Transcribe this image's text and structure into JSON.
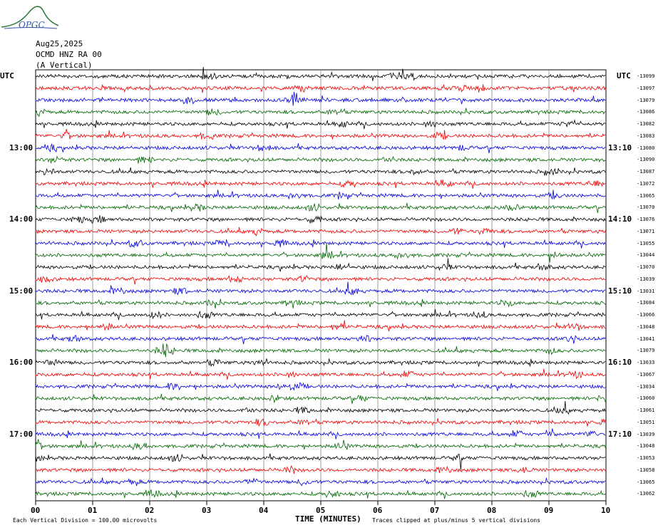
{
  "header": {
    "logo_text": "OPGC",
    "date": "Aug25,2025",
    "station": "OCMD HNZ RA 00",
    "component": "(A Vertical)"
  },
  "axes": {
    "left_utc_label": "UTC",
    "right_utc_label": "UTC",
    "x_label": "TIME (MINUTES)",
    "x_ticks": [
      "00",
      "01",
      "02",
      "03",
      "04",
      "05",
      "06",
      "07",
      "08",
      "09",
      "10"
    ],
    "left_hour_labels": [
      "13:00",
      "14:00",
      "15:00",
      "16:00",
      "17:00"
    ],
    "right_hour_labels": [
      "13:10",
      "14:10",
      "15:10",
      "16:10",
      "17:10"
    ]
  },
  "footer": {
    "division_note": "Each Vertical Division =  100.00 microvolts",
    "clip_note": "Traces clipped at plus/minus 5 vertical divisions"
  },
  "chart_data": {
    "type": "line",
    "title": "",
    "xlabel": "TIME (MINUTES)",
    "xlim": [
      0,
      10
    ],
    "grid": true,
    "trace_count": 36,
    "trace_colors": [
      "#000000",
      "#ee0000",
      "#0000dd",
      "#006600"
    ],
    "trace_offsets": [
      "-13099",
      "-13097",
      "-13079",
      "-13086",
      "-13082",
      "-13083",
      "-13080",
      "-13090",
      "-13087",
      "-13072",
      "-13065",
      "-13070",
      "-13076",
      "-13071",
      "-13055",
      "-13044",
      "-13070",
      "-13039",
      "-13031",
      "-13084",
      "-13066",
      "-13048",
      "-13041",
      "-13079",
      "-13033",
      "-13067",
      "-13034",
      "-13060",
      "-13061",
      "-13051",
      "-13039",
      "-13048",
      "-13053",
      "-13058",
      "-13065",
      "-13062"
    ]
  }
}
